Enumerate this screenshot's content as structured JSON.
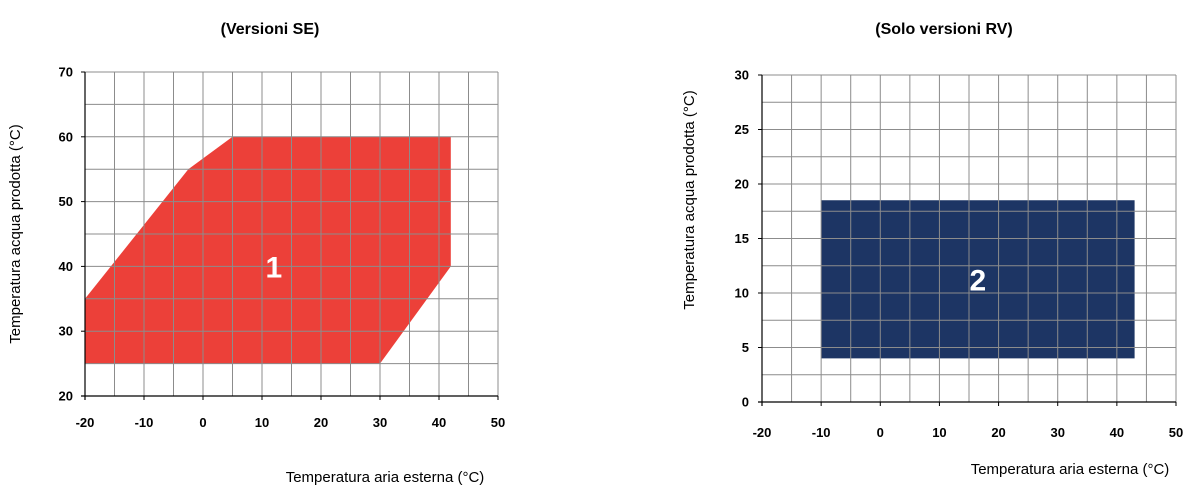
{
  "chart_data": [
    {
      "type": "area",
      "title": "(Versioni SE)",
      "xlabel": "Temperatura aria esterna (°C)",
      "ylabel": "Temperatura acqua prodotta (°C)",
      "xlim": [
        -20,
        50
      ],
      "ylim": [
        20,
        70
      ],
      "xticks": [
        -20,
        -10,
        0,
        10,
        20,
        30,
        40,
        50
      ],
      "yticks": [
        20,
        30,
        40,
        50,
        60,
        70
      ],
      "grid": true,
      "series": [
        {
          "name": "1",
          "color": "#ec4039",
          "points": [
            [
              -20,
              25
            ],
            [
              -20,
              35
            ],
            [
              -2.5,
              55
            ],
            [
              5,
              60
            ],
            [
              42,
              60
            ],
            [
              42,
              40
            ],
            [
              30,
              25
            ]
          ]
        }
      ]
    },
    {
      "type": "area",
      "title": "(Solo versioni RV)",
      "xlabel": "Temperatura aria esterna (°C)",
      "ylabel": "Temperatura acqua prodotta (°C)",
      "xlim": [
        -20,
        50
      ],
      "ylim": [
        0,
        30
      ],
      "xticks": [
        -20,
        -10,
        0,
        10,
        20,
        30,
        40,
        50
      ],
      "yticks": [
        0,
        5,
        10,
        15,
        20,
        25,
        30
      ],
      "grid": true,
      "series": [
        {
          "name": "2",
          "color": "#1d3564",
          "points": [
            [
              -10,
              4
            ],
            [
              -10,
              18.5
            ],
            [
              43,
              18.5
            ],
            [
              43,
              4
            ]
          ]
        }
      ]
    }
  ]
}
